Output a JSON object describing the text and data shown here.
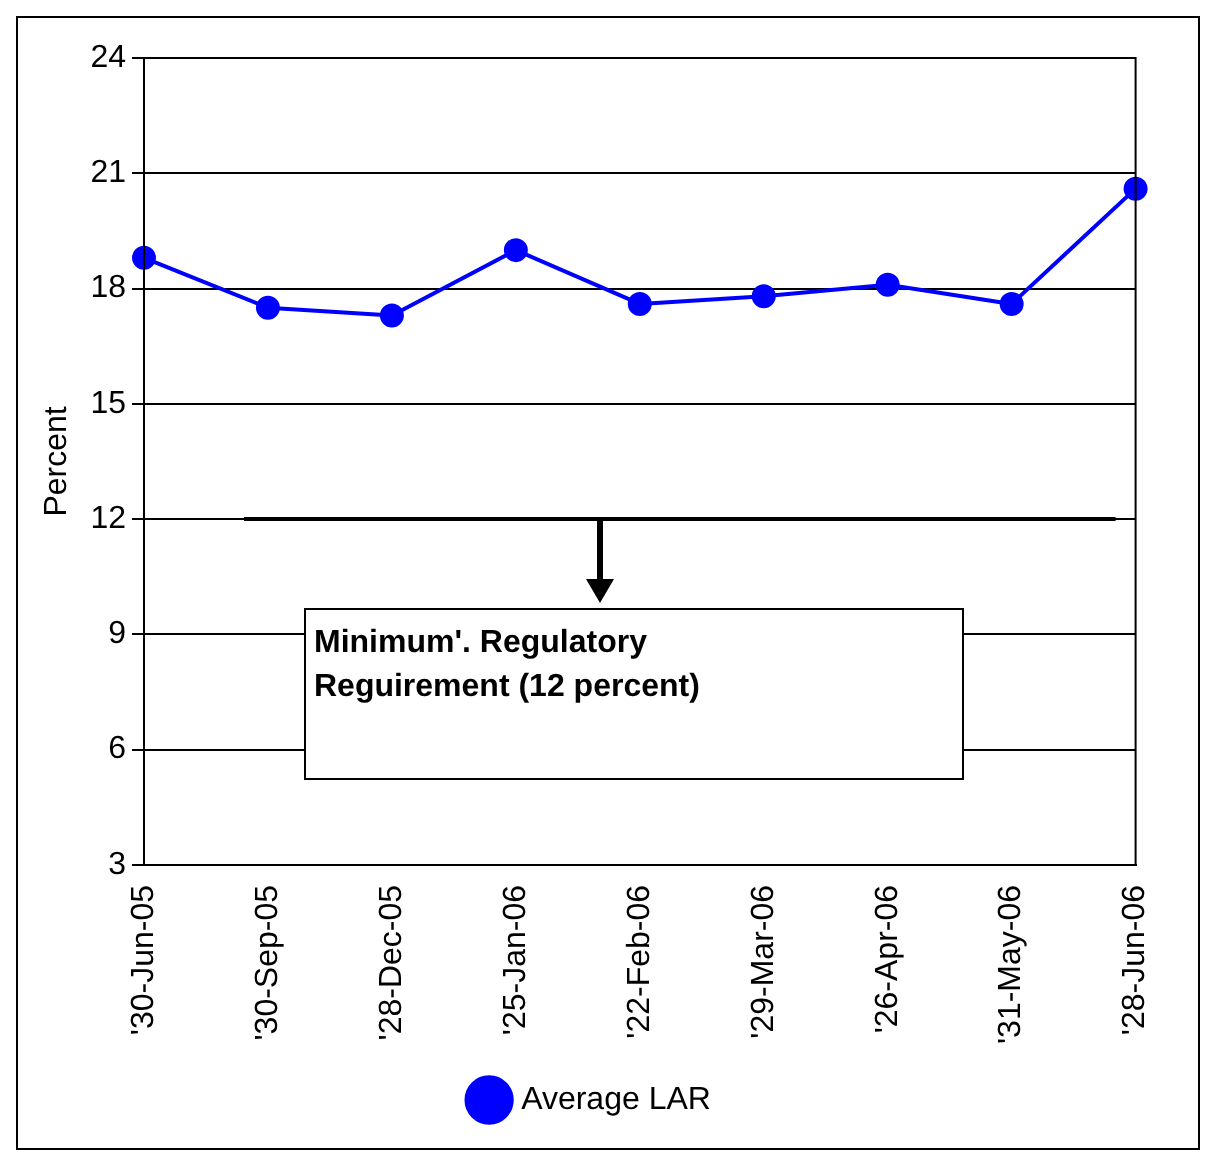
{
  "chart_data": {
    "type": "line",
    "ylabel": "Percent",
    "categories": [
      "'30-Jun-05",
      "'30-Sep-05",
      "'28-Dec-05",
      "'25-Jan-06",
      "'22-Feb-06",
      "'29-Mar-06",
      "'26-Apr-06",
      "'31-May-06",
      "'28-Jun-06"
    ],
    "series": [
      {
        "name": "Average LAR",
        "color": "#0000ff",
        "values": [
          18.8,
          17.5,
          17.3,
          19.0,
          17.6,
          17.8,
          18.1,
          17.6,
          20.6
        ]
      }
    ],
    "ylim": [
      3,
      24
    ],
    "yticks": [
      3,
      6,
      9,
      12,
      15,
      18,
      21,
      24
    ],
    "grid": "y",
    "legend": "bottom",
    "marker": "circle",
    "line_style": "solid",
    "ref_lines": [
      {
        "axis": "y",
        "value": 12,
        "label": "Minimum'. Regulatory Reguirement (12 percent)",
        "color": "#000000"
      }
    ]
  }
}
